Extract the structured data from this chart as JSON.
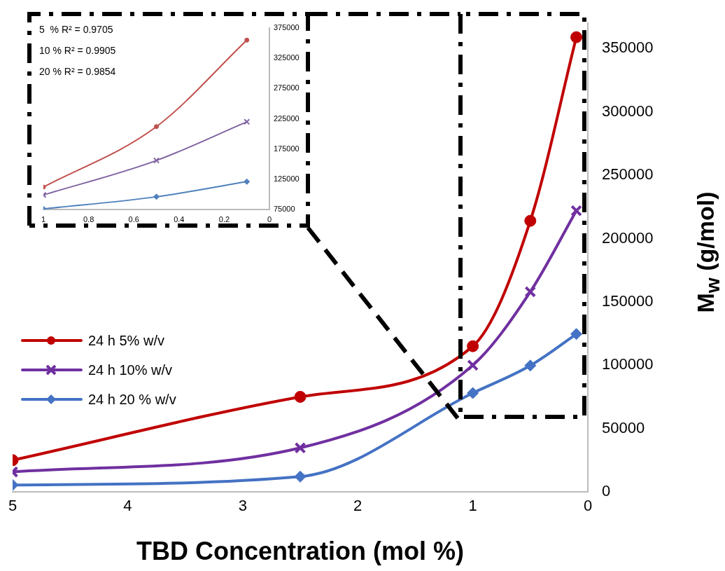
{
  "chart_data": [
    {
      "type": "line",
      "xlabel": "TBD Concentration (mol %)",
      "ylabel": "M$_{w}$ (g/mol)",
      "xlim": [
        5,
        0
      ],
      "xticks": [
        5,
        4,
        3,
        2,
        1,
        0
      ],
      "ylim": [
        0,
        370000
      ],
      "yticks": [
        0,
        50000,
        100000,
        150000,
        200000,
        250000,
        300000,
        350000
      ],
      "grid": false,
      "legend": "left",
      "series": [
        {
          "name": "24 h 5% w/v",
          "color": "#c00000",
          "marker": "circle",
          "x": [
            5,
            2.5,
            1,
            0.5,
            0.1
          ],
          "values": [
            25000,
            75000,
            115000,
            214000,
            359000
          ]
        },
        {
          "name": "24 h 10% w/v",
          "color": "#7030a0",
          "marker": "cross",
          "x": [
            5,
            2.5,
            1,
            0.5,
            0.1
          ],
          "values": [
            15700,
            34700,
            100000,
            158000,
            222000
          ]
        },
        {
          "name": "24 h 20 % w/v",
          "color": "#4472c4",
          "marker": "diamond",
          "x": [
            5,
            2.5,
            1,
            0.5,
            0.1
          ],
          "values": [
            5400,
            12000,
            78000,
            99700,
            124600
          ]
        }
      ]
    },
    {
      "type": "line",
      "xlim": [
        1,
        0
      ],
      "xticks": [
        1,
        0.8,
        0.6,
        0.4,
        0.2,
        0
      ],
      "ylim": [
        75000,
        375000
      ],
      "yticks": [
        75000,
        125000,
        175000,
        225000,
        275000,
        325000,
        375000
      ],
      "grid": false,
      "annotations": [
        "5  % R² = 0.9705",
        "10 % R² = 0.9905",
        "20 % R² = 0.9854"
      ],
      "series": [
        {
          "color": "#c0504d",
          "marker": "circle",
          "x": [
            1,
            0.5,
            0.1
          ],
          "values": [
            112000,
            212000,
            355000
          ]
        },
        {
          "color": "#8064a2",
          "marker": "cross",
          "x": [
            1,
            0.5,
            0.1
          ],
          "values": [
            99000,
            156000,
            220000
          ]
        },
        {
          "color": "#4f81bd",
          "marker": "diamond",
          "x": [
            1,
            0.5,
            0.1
          ],
          "values": [
            76000,
            96000,
            121000
          ]
        }
      ]
    }
  ]
}
